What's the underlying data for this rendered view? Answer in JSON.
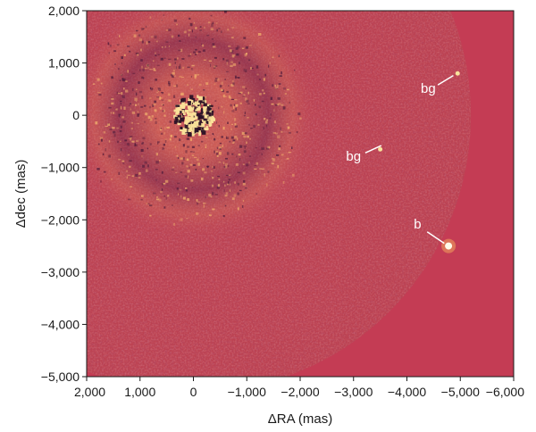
{
  "chart_data": {
    "type": "heatmap",
    "xlabel": "ΔRA (mas)",
    "ylabel": "Δdec (mas)",
    "xlim": [
      2000,
      -6000
    ],
    "ylim": [
      -5000,
      2000
    ],
    "x_ticks": [
      2000,
      1000,
      0,
      -1000,
      -2000,
      -3000,
      -4000,
      -5000,
      -6000
    ],
    "x_tick_labels": [
      "2,000",
      "1,000",
      "0",
      "−1,000",
      "−2,000",
      "−3,000",
      "−4,000",
      "−5,000",
      "−6,000"
    ],
    "y_ticks": [
      2000,
      1000,
      0,
      -1000,
      -2000,
      -3000,
      -4000,
      -5000
    ],
    "y_tick_labels": [
      "2,000",
      "1,000",
      "0",
      "−1,000",
      "−2,000",
      "−3,000",
      "−4,000",
      "−5,000"
    ],
    "field_radius": 5200,
    "star_position": [
      0,
      0
    ],
    "sources": [
      {
        "label": "bg",
        "x": -4950,
        "y": 800,
        "text_x": -4400,
        "text_y": 500,
        "line_from": [
          -4580,
          580
        ],
        "line_to": [
          -4870,
          760
        ]
      },
      {
        "label": "bg",
        "x": -3500,
        "y": -650,
        "text_x": -3000,
        "text_y": -800,
        "line_from": [
          -3220,
          -720
        ],
        "line_to": [
          -3520,
          -580
        ]
      },
      {
        "label": "b",
        "x": -4780,
        "y": -2500,
        "text_x": -4200,
        "text_y": -2100,
        "line_from": [
          -4380,
          -2230
        ],
        "line_to": [
          -4700,
          -2450
        ]
      }
    ],
    "colors": {
      "background": "#c43c54",
      "field": "#bc4252",
      "speckle_bright": "#fbe39a",
      "speckle_dark": "#2b1226",
      "annotation": "#ffffff"
    }
  }
}
